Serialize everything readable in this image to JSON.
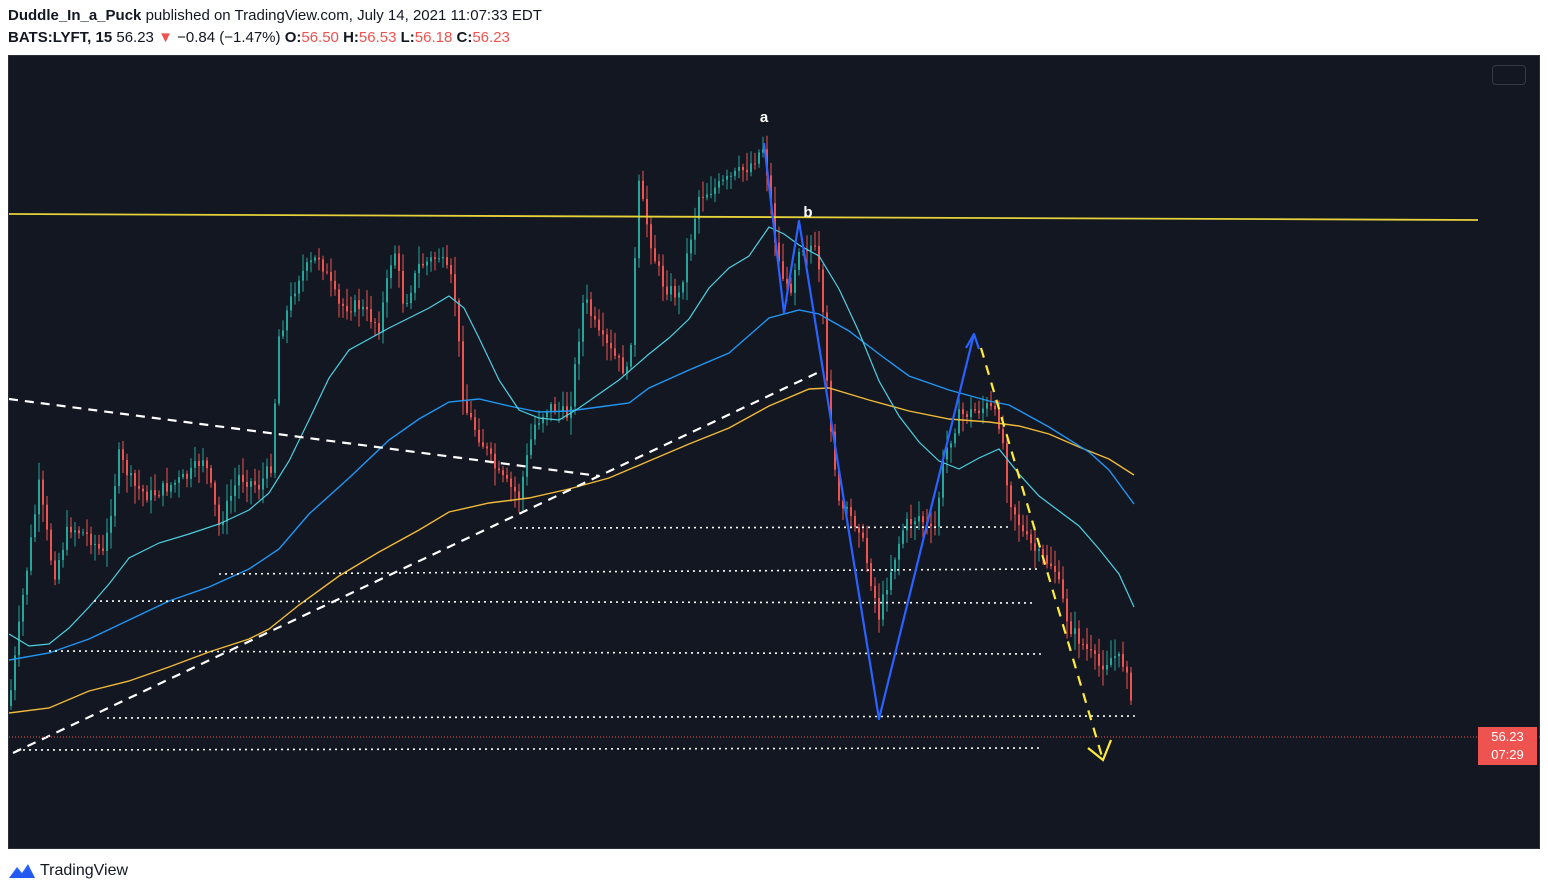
{
  "header": {
    "author": "Duddle_In_a_Puck",
    "published_text": "published on TradingView.com, July 14, 2021 11:07:33 EDT",
    "symbol": "BATS:LYFT, 15",
    "last": "56.23",
    "change_arrow": "▼",
    "change": "−0.84 (−1.47%)",
    "o_label": "O:",
    "o_value": "56.50",
    "h_label": "H:",
    "h_value": "56.53",
    "l_label": "L:",
    "l_value": "56.18",
    "c_label": "C:",
    "c_value": "56.23"
  },
  "price_tag": {
    "price": "56.23",
    "countdown": "07:29"
  },
  "footer": {
    "brand": "TradingView"
  },
  "colors": {
    "background": "#131722",
    "up": "#26a69a",
    "down": "#ef5350",
    "ma_fast": "#4dd0e1",
    "ma_mid": "#2196f3",
    "ma_slow": "#f0b93a",
    "resistance": "#e6d23a",
    "wave": "#2962ff",
    "projection": "#ffeb3b"
  },
  "chart_data": {
    "type": "candlestick",
    "symbol": "BATS:LYFT",
    "timeframe": "15",
    "last_price": 56.23,
    "ohlc_last": {
      "open": 56.5,
      "high": 56.53,
      "low": 56.18,
      "close": 56.23
    },
    "annotations": [
      {
        "label": "a",
        "kind": "wave-top"
      },
      {
        "label": "b",
        "kind": "wave-top"
      }
    ],
    "indicators": [
      "fast moving average",
      "mid moving average",
      "slow moving average"
    ],
    "drawings": [
      "horizontal resistance line",
      "dashed trendlines",
      "dotted support levels",
      "blue zigzag",
      "yellow dashed projection"
    ],
    "price_axis_visible": false,
    "time_axis_visible": false
  }
}
